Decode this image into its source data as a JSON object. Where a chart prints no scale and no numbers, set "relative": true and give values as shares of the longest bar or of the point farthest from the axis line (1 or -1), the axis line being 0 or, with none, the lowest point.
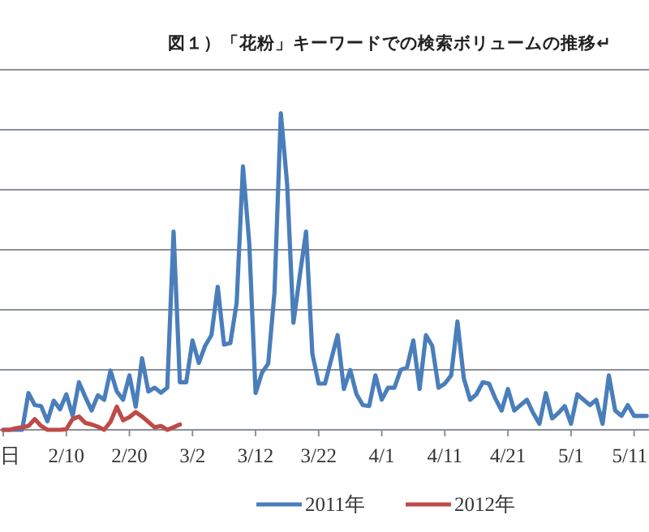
{
  "chart_data": {
    "type": "line",
    "title": "図１）「花粉」キーワードでの検索ボリュームの推移↵",
    "relative": true,
    "grid": "y",
    "legend": "bottom",
    "marker": "none",
    "line_style": "solid",
    "categories": [
      "日",
      null,
      null,
      null,
      null,
      null,
      null,
      null,
      null,
      null,
      "2/10",
      null,
      null,
      null,
      null,
      null,
      null,
      null,
      null,
      null,
      "2/20",
      null,
      null,
      null,
      null,
      null,
      null,
      null,
      null,
      null,
      "3/2",
      null,
      null,
      null,
      null,
      null,
      null,
      null,
      null,
      null,
      "3/12",
      null,
      null,
      null,
      null,
      null,
      null,
      null,
      null,
      null,
      "3/22",
      null,
      null,
      null,
      null,
      null,
      null,
      null,
      null,
      null,
      "4/1",
      null,
      null,
      null,
      null,
      null,
      null,
      null,
      null,
      null,
      "4/11",
      null,
      null,
      null,
      null,
      null,
      null,
      null,
      null,
      null,
      "4/21",
      null,
      null,
      null,
      null,
      null,
      null,
      null,
      null,
      null,
      "5/1",
      null,
      null,
      null,
      null,
      null,
      null,
      null,
      null,
      null,
      "5/11",
      null,
      null
    ],
    "series": [
      {
        "name": "2011年",
        "color": "#4a7ebb",
        "values": [
          0,
          0,
          0,
          0,
          0.116,
          0.078,
          0.075,
          0.027,
          0.092,
          0.065,
          0.112,
          0.044,
          0.15,
          0.104,
          0.061,
          0.109,
          0.095,
          0.187,
          0.121,
          0.095,
          0.172,
          0.073,
          0.226,
          0.121,
          0.133,
          0.117,
          0.133,
          0.626,
          0.15,
          0.15,
          0.282,
          0.211,
          0.265,
          0.299,
          0.452,
          0.269,
          0.274,
          0.401,
          0.832,
          0.588,
          0.116,
          0.18,
          0.209,
          0.435,
          1,
          0.776,
          0.338,
          0.486,
          0.626,
          0.24,
          0.146,
          0.146,
          0.223,
          0.299,
          0.129,
          0.189,
          0.112,
          0.078,
          0.075,
          0.172,
          0.095,
          0.133,
          0.133,
          0.189,
          0.197,
          0.282,
          0.129,
          0.299,
          0.265,
          0.133,
          0.146,
          0.172,
          0.342,
          0.163,
          0.095,
          0.112,
          0.15,
          0.146,
          0.099,
          0.061,
          0.129,
          0.061,
          0.078,
          0.095,
          0.053,
          0.019,
          0.116,
          0.036,
          0.053,
          0.075,
          0.019,
          0.112,
          0.095,
          0.078,
          0.095,
          0.019,
          0.172,
          0.061,
          0.044,
          0.078,
          0.044,
          0.044,
          0.044
        ]
      },
      {
        "name": "2012年",
        "color": "#be4b48",
        "values": [
          0,
          0,
          0.005,
          0.008,
          0.012,
          0.034,
          0.012,
          0,
          0,
          0,
          0.002,
          0.034,
          0.042,
          0.022,
          0.017,
          0.01,
          0,
          0.025,
          0.073,
          0.03,
          0.04,
          0.056,
          0.042,
          0.025,
          0.008,
          0.012,
          0,
          0.008,
          0.017,
          null,
          null,
          null,
          null,
          null,
          null,
          null,
          null,
          null,
          null,
          null,
          null,
          null,
          null,
          null,
          null,
          null,
          null,
          null,
          null,
          null,
          null,
          null,
          null,
          null,
          null,
          null,
          null,
          null,
          null,
          null,
          null,
          null,
          null,
          null,
          null,
          null,
          null,
          null,
          null,
          null,
          null,
          null,
          null,
          null,
          null,
          null,
          null,
          null,
          null,
          null,
          null,
          null,
          null,
          null,
          null,
          null,
          null,
          null,
          null,
          null,
          null,
          null,
          null,
          null,
          null,
          null,
          null,
          null,
          null,
          null,
          null,
          null,
          null
        ]
      }
    ]
  }
}
